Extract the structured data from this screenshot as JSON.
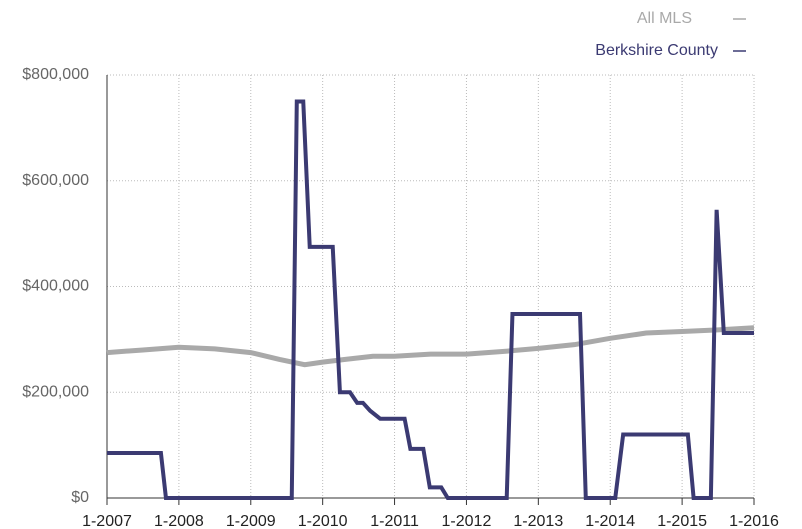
{
  "chart_data": {
    "type": "line",
    "series": [
      {
        "name": "All MLS",
        "color": "#a9a9a9",
        "x": [
          2007,
          2007.5,
          2008,
          2008.5,
          2009,
          2009.4,
          2009.75,
          2010,
          2010.3,
          2010.7,
          2011,
          2011.5,
          2012,
          2012.5,
          2013,
          2013.5,
          2014,
          2014.5,
          2015,
          2015.5,
          2016
        ],
        "values": [
          275000,
          280000,
          285000,
          282000,
          275000,
          262000,
          252000,
          257000,
          262000,
          268000,
          268000,
          272000,
          272000,
          277000,
          283000,
          290000,
          302000,
          312000,
          315000,
          318000,
          322000
        ]
      },
      {
        "name": "Berkshire County",
        "color": "#3b3a72",
        "x": [
          2007,
          2007.75,
          2007.82,
          2009.57,
          2009.64,
          2009.73,
          2009.82,
          2010.14,
          2010.24,
          2010.38,
          2010.48,
          2010.56,
          2010.66,
          2010.8,
          2011.14,
          2011.22,
          2011.4,
          2011.49,
          2011.65,
          2011.74,
          2012.56,
          2012.64,
          2013.58,
          2013.66,
          2014.07,
          2014.18,
          2015.08,
          2015.16,
          2015.4,
          2015.48,
          2015.58,
          2016
        ],
        "values": [
          85000,
          85000,
          0,
          0,
          750000,
          750000,
          475000,
          475000,
          200000,
          200000,
          180000,
          180000,
          165000,
          150000,
          150000,
          93000,
          93000,
          20000,
          20000,
          0,
          0,
          348000,
          348000,
          0,
          0,
          120000,
          120000,
          0,
          0,
          545000,
          312000,
          312000
        ]
      }
    ],
    "xlim": [
      2007,
      2016
    ],
    "xticks": [
      {
        "value": 2007,
        "label": "1-2007"
      },
      {
        "value": 2008,
        "label": "1-2008"
      },
      {
        "value": 2009,
        "label": "1-2009"
      },
      {
        "value": 2010,
        "label": "1-2010"
      },
      {
        "value": 2011,
        "label": "1-2011"
      },
      {
        "value": 2012,
        "label": "1-2012"
      },
      {
        "value": 2013,
        "label": "1-2013"
      },
      {
        "value": 2014,
        "label": "1-2014"
      },
      {
        "value": 2015,
        "label": "1-2015"
      },
      {
        "value": 2016,
        "label": "1-2016"
      }
    ],
    "ylim": [
      0,
      800000
    ],
    "yticks": [
      {
        "value": 0,
        "label": "$0"
      },
      {
        "value": 200000,
        "label": "$200,000"
      },
      {
        "value": 400000,
        "label": "$400,000"
      },
      {
        "value": 600000,
        "label": "$600,000"
      },
      {
        "value": 800000,
        "label": "$800,000"
      }
    ],
    "grid": true
  }
}
